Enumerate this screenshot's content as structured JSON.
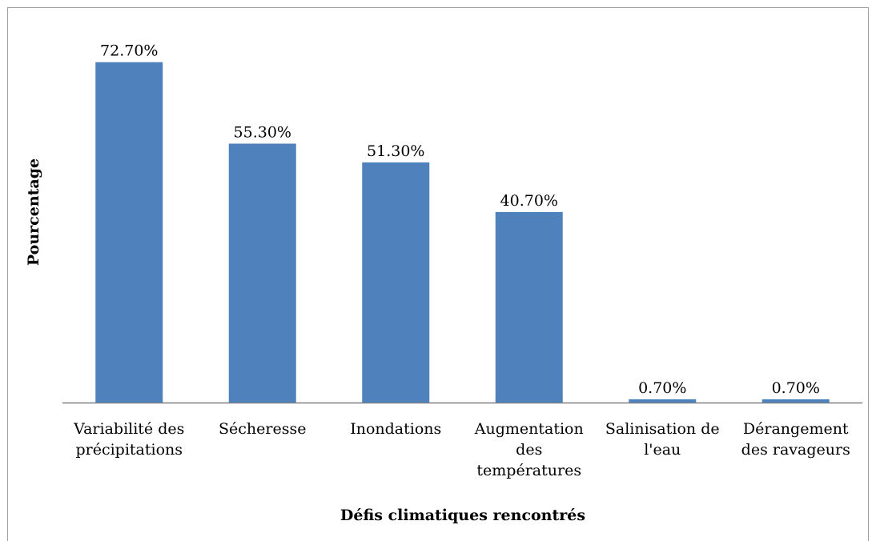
{
  "chart_data": {
    "type": "bar",
    "x_label": "Défis climatiques rencontrés",
    "y_label": "Pourcentage",
    "categories": [
      "Variabilité des précipitations",
      "Sécheresse",
      "Inondations",
      "Augmentation des températures",
      "Salinisation de l'eau",
      "Dérangement des ravageurs"
    ],
    "values": [
      72.7,
      55.3,
      51.3,
      40.7,
      0.7,
      0.7
    ],
    "value_labels": [
      "72.70%",
      "55.30%",
      "51.30%",
      "40.70%",
      "0.70%",
      "0.70%"
    ],
    "color": "#4f81bd",
    "ylim": [
      0,
      80
    ]
  }
}
